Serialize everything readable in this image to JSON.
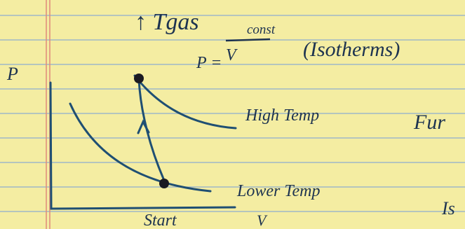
{
  "notes": {
    "heading": "↑ Tgas",
    "formula": {
      "lhs": "P =",
      "numerator": "const",
      "denominator": "V"
    },
    "annotation": "(Isotherms)",
    "graph": {
      "y_axis": "P",
      "x_axis": "V",
      "curves": [
        "High Temp",
        "Lower Temp"
      ],
      "start": "Start"
    },
    "margin_notes": [
      "Fur",
      "Is"
    ]
  }
}
